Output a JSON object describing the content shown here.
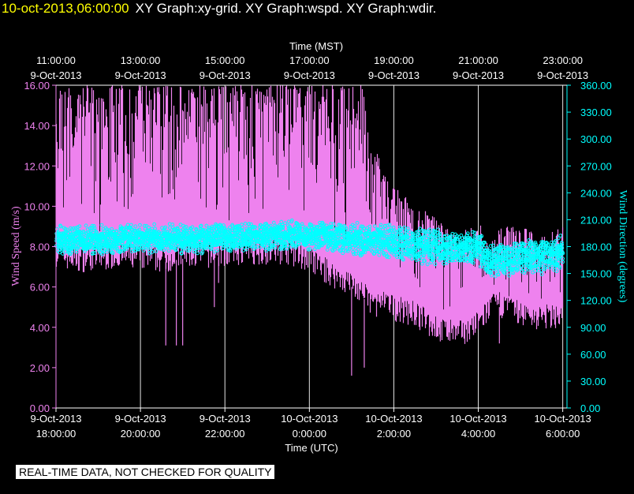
{
  "header": {
    "timestamp": "10-oct-2013,06:00:00",
    "graphs": "XY Graph:xy-grid.  XY Graph:wspd.  XY Graph:wdir."
  },
  "footer_note": "REAL-TIME DATA, NOT CHECKED FOR QUALITY",
  "colors": {
    "background": "#000000",
    "axis": "#ffffff",
    "grid": "#ffffff",
    "wind_speed": "#ee82ee",
    "wind_direction": "#00ffff",
    "timestamp": "#ffff00"
  },
  "chart_data": {
    "type": "line",
    "title": "",
    "grid": "vertical lines at top-axis ticks",
    "x_top": {
      "label": "Time (MST)",
      "ticks": [
        {
          "hour": 0,
          "line1": "11:00:00",
          "line2": "9-Oct-2013"
        },
        {
          "hour": 2,
          "line1": "13:00:00",
          "line2": "9-Oct-2013"
        },
        {
          "hour": 4,
          "line1": "15:00:00",
          "line2": "9-Oct-2013"
        },
        {
          "hour": 6,
          "line1": "17:00:00",
          "line2": "9-Oct-2013"
        },
        {
          "hour": 8,
          "line1": "19:00:00",
          "line2": "9-Oct-2013"
        },
        {
          "hour": 10,
          "line1": "21:00:00",
          "line2": "9-Oct-2013"
        },
        {
          "hour": 12,
          "line1": "23:00:00",
          "line2": "9-Oct-2013"
        }
      ]
    },
    "x_bottom": {
      "label": "Time (UTC)",
      "ticks": [
        {
          "hour": 0,
          "line1": "9-Oct-2013",
          "line2": "18:00:00"
        },
        {
          "hour": 2,
          "line1": "9-Oct-2013",
          "line2": "20:00:00"
        },
        {
          "hour": 4,
          "line1": "9-Oct-2013",
          "line2": "22:00:00"
        },
        {
          "hour": 6,
          "line1": "10-Oct-2013",
          "line2": "0:00:00"
        },
        {
          "hour": 8,
          "line1": "10-Oct-2013",
          "line2": "2:00:00"
        },
        {
          "hour": 10,
          "line1": "10-Oct-2013",
          "line2": "4:00:00"
        },
        {
          "hour": 12,
          "line1": "10-Oct-2013",
          "line2": "6:00:00"
        }
      ]
    },
    "x_range_hours": [
      0,
      12.1
    ],
    "y_left": {
      "label": "Wind Speed (m/s)",
      "range": [
        0,
        16
      ],
      "ticks": [
        "0.00",
        "2.00",
        "4.00",
        "6.00",
        "8.00",
        "10.00",
        "12.00",
        "14.00",
        "16.00"
      ]
    },
    "y_right": {
      "label": "Wind Direction (degrees)",
      "range": [
        0,
        360
      ],
      "ticks": [
        "0.00",
        "30.00",
        "60.00",
        "90.00",
        "120.00",
        "150.00",
        "180.00",
        "210.00",
        "240.00",
        "270.00",
        "300.00",
        "330.00",
        "360.00"
      ]
    },
    "series": [
      {
        "name": "wspd",
        "axis": "left",
        "style": "dense vertical spikes between low and high values",
        "points": [
          {
            "h": 0.0,
            "low": 7.5,
            "high": 16.0
          },
          {
            "h": 0.5,
            "low": 7.2,
            "high": 16.0
          },
          {
            "h": 1.0,
            "low": 7.3,
            "high": 16.0
          },
          {
            "h": 1.5,
            "low": 7.4,
            "high": 16.0
          },
          {
            "h": 2.0,
            "low": 7.3,
            "high": 16.0
          },
          {
            "h": 2.5,
            "low": 7.2,
            "high": 16.0
          },
          {
            "h": 3.0,
            "low": 7.4,
            "high": 16.0
          },
          {
            "h": 3.5,
            "low": 7.4,
            "high": 16.0
          },
          {
            "h": 4.0,
            "low": 7.5,
            "high": 16.0
          },
          {
            "h": 4.5,
            "low": 7.6,
            "high": 16.0
          },
          {
            "h": 5.0,
            "low": 7.6,
            "high": 16.0
          },
          {
            "h": 5.5,
            "low": 7.6,
            "high": 16.0
          },
          {
            "h": 6.0,
            "low": 7.2,
            "high": 16.0
          },
          {
            "h": 6.5,
            "low": 6.5,
            "high": 16.0
          },
          {
            "h": 7.0,
            "low": 6.0,
            "high": 16.0
          },
          {
            "h": 7.25,
            "low": 5.5,
            "high": 16.0
          },
          {
            "h": 7.5,
            "low": 5.0,
            "high": 13.0
          },
          {
            "h": 7.75,
            "low": 5.0,
            "high": 12.0
          },
          {
            "h": 8.0,
            "low": 4.8,
            "high": 11.0
          },
          {
            "h": 8.5,
            "low": 4.5,
            "high": 10.0
          },
          {
            "h": 9.0,
            "low": 3.8,
            "high": 9.5
          },
          {
            "h": 9.5,
            "low": 3.5,
            "high": 8.5
          },
          {
            "h": 10.0,
            "low": 4.0,
            "high": 9.5
          },
          {
            "h": 10.25,
            "low": 4.8,
            "high": 8.0
          },
          {
            "h": 10.5,
            "low": 5.0,
            "high": 9.0
          },
          {
            "h": 11.0,
            "low": 4.5,
            "high": 9.0
          },
          {
            "h": 11.5,
            "low": 4.3,
            "high": 8.5
          },
          {
            "h": 12.0,
            "low": 4.5,
            "high": 9.0
          }
        ],
        "dips": [
          {
            "h": 2.6,
            "value": 3.1
          },
          {
            "h": 2.85,
            "value": 3.1
          },
          {
            "h": 3.0,
            "value": 3.1
          },
          {
            "h": 3.75,
            "value": 5.0
          },
          {
            "h": 3.85,
            "value": 6.2
          },
          {
            "h": 6.5,
            "value": 6.5
          },
          {
            "h": 7.0,
            "value": 1.6
          },
          {
            "h": 7.3,
            "value": 2.0
          },
          {
            "h": 9.1,
            "value": 3.3
          },
          {
            "h": 10.5,
            "value": 3.2
          }
        ]
      },
      {
        "name": "wdir",
        "axis": "right",
        "style": "dense scattered circles",
        "points": [
          {
            "h": 0.0,
            "low": 170,
            "high": 205
          },
          {
            "h": 1.0,
            "low": 170,
            "high": 205
          },
          {
            "h": 2.0,
            "low": 172,
            "high": 207
          },
          {
            "h": 3.0,
            "low": 172,
            "high": 205
          },
          {
            "h": 4.0,
            "low": 172,
            "high": 208
          },
          {
            "h": 5.0,
            "low": 175,
            "high": 210
          },
          {
            "h": 6.0,
            "low": 175,
            "high": 210
          },
          {
            "h": 7.0,
            "low": 170,
            "high": 208
          },
          {
            "h": 8.0,
            "low": 165,
            "high": 205
          },
          {
            "h": 9.0,
            "low": 158,
            "high": 200
          },
          {
            "h": 10.0,
            "low": 160,
            "high": 198
          },
          {
            "h": 10.25,
            "low": 145,
            "high": 185
          },
          {
            "h": 11.0,
            "low": 148,
            "high": 188
          },
          {
            "h": 12.0,
            "low": 150,
            "high": 195
          }
        ]
      }
    ]
  }
}
